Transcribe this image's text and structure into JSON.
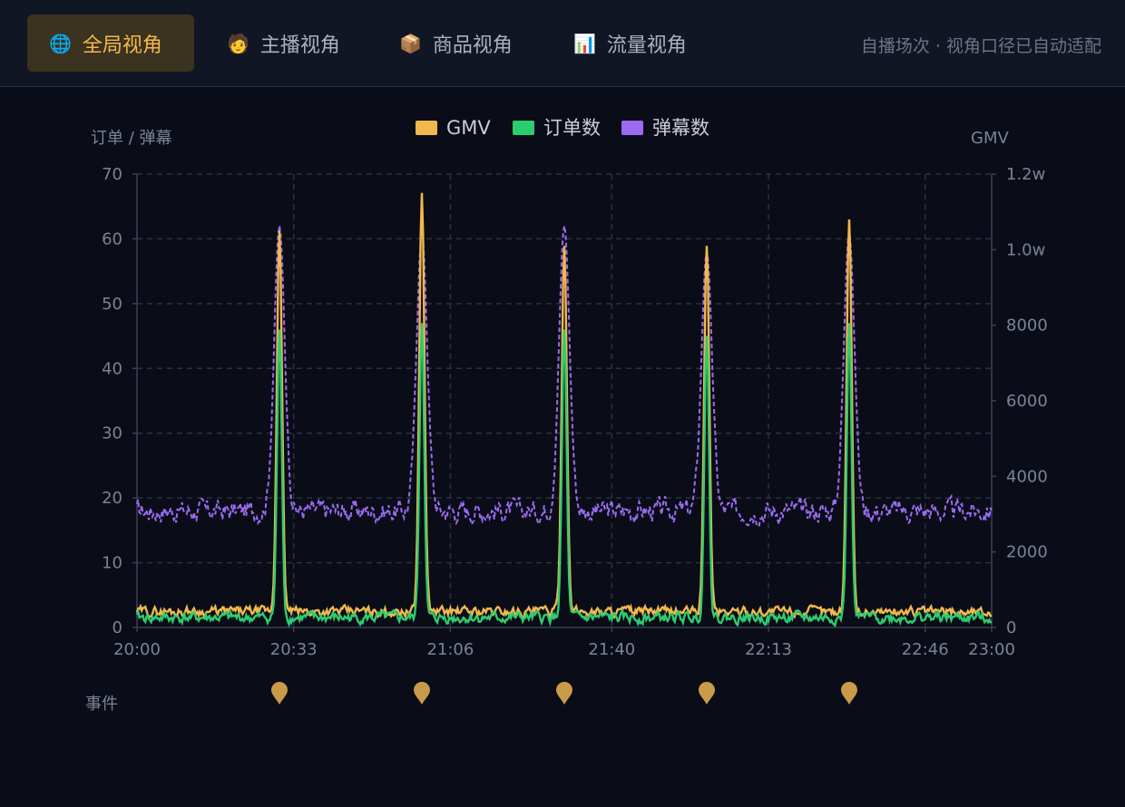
{
  "tabs": [
    {
      "label": "全局视角",
      "icon": "globe-icon",
      "glyph": "🌐",
      "active": true
    },
    {
      "label": "主播视角",
      "icon": "streamer-face-icon",
      "glyph": "🧑",
      "active": false
    },
    {
      "label": "商品视角",
      "icon": "package-icon",
      "glyph": "📦",
      "active": false
    },
    {
      "label": "流量视角",
      "icon": "bar-chart-icon",
      "glyph": "📊",
      "active": false
    }
  ],
  "note": "自播场次 · 视角口径已自动适配",
  "colors": {
    "gmv": "#f2b84b",
    "orders": "#2ecc71",
    "danmaku": "#9b6bf2",
    "event": "#c99a4a",
    "grid": "#2a3142"
  },
  "chart_data": {
    "type": "line",
    "legend": [
      "GMV",
      "订单数",
      "弹幕数"
    ],
    "legend_placement": "top-center",
    "y_left_title": "订单 / 弹幕",
    "y_right_title": "GMV",
    "y_left_ticks": [
      "0",
      "10",
      "20",
      "30",
      "40",
      "50",
      "60",
      "70"
    ],
    "y_right_ticks": [
      "0",
      "2000",
      "4000",
      "6000",
      "8000",
      "1.0w",
      "1.2w"
    ],
    "x_ticks": [
      "20:00",
      "20:33",
      "21:06",
      "21:40",
      "22:13",
      "22:46",
      "23:00"
    ],
    "x_tick_minutes": [
      0,
      33,
      66,
      100,
      133,
      166,
      180
    ],
    "ylim_left": [
      0,
      70
    ],
    "ylim_right": [
      0,
      12000
    ],
    "xlim_minutes": [
      0,
      180
    ],
    "grid": true,
    "event_label": "事件",
    "event_minutes": [
      30,
      60,
      90,
      120,
      150
    ],
    "peaks_minutes": [
      30,
      60,
      90,
      120,
      150
    ],
    "series": [
      {
        "name": "GMV",
        "axis": "right",
        "style": "solid",
        "baseline": [
          200,
          650
        ],
        "peaks": [
          10500,
          11500,
          10100,
          10100,
          10800
        ]
      },
      {
        "name": "订单数",
        "axis": "left",
        "style": "solid",
        "baseline": [
          0,
          3
        ],
        "peaks": [
          46,
          47,
          46,
          45,
          47
        ]
      },
      {
        "name": "弹幕数",
        "axis": "left",
        "style": "dashed",
        "baseline": [
          15,
          21
        ],
        "peaks": [
          62,
          61,
          62,
          58,
          61
        ]
      }
    ]
  }
}
